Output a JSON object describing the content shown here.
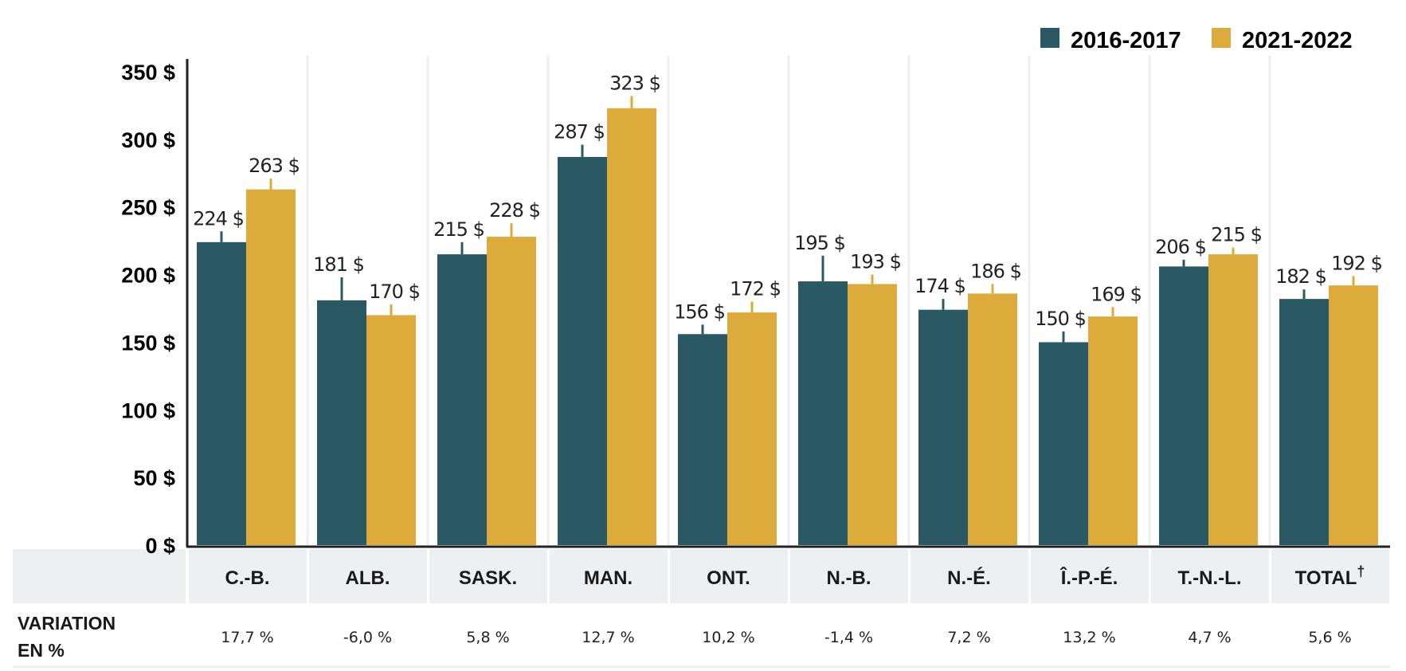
{
  "chart_data": {
    "type": "bar",
    "categories": [
      "C.-B.",
      "ALB.",
      "SASK.",
      "MAN.",
      "ONT.",
      "N.-B.",
      "N.-É.",
      "Î.-P.-É.",
      "T.-N.-L.",
      "TOTAL"
    ],
    "category_superscripts": [
      "",
      "",
      "",
      "",
      "",
      "",
      "",
      "",
      "",
      "†"
    ],
    "series": [
      {
        "name": "2016-2017",
        "color": "#2a5964",
        "values": [
          224,
          181,
          215,
          287,
          156,
          195,
          174,
          150,
          206,
          182
        ],
        "labels": [
          "224 $",
          "181 $",
          "215 $",
          "287 $",
          "156 $",
          "195 $",
          "174 $",
          "150 $",
          "206 $",
          "182 $"
        ],
        "error_upper": [
          232,
          198,
          224,
          296,
          163,
          214,
          182,
          158,
          211,
          189
        ]
      },
      {
        "name": "2021-2022",
        "color": "#ddab3c",
        "values": [
          263,
          170,
          228,
          323,
          172,
          193,
          186,
          169,
          215,
          192
        ],
        "labels": [
          "263 $",
          "170 $",
          "228 $",
          "323 $",
          "172 $",
          "193 $",
          "186 $",
          "169 $",
          "215 $",
          "192 $"
        ],
        "error_upper": [
          271,
          178,
          238,
          332,
          180,
          200,
          193,
          176,
          220,
          199
        ]
      }
    ],
    "yticks": [
      "0 $",
      "50 $",
      "100 $",
      "150 $",
      "200 $",
      "250 $",
      "300 $",
      "350 $"
    ],
    "ytick_values": [
      0,
      50,
      100,
      150,
      200,
      250,
      300,
      350
    ],
    "ylim": [
      0,
      350
    ],
    "legend_position": "top-right",
    "grid": "vertical separators between categories",
    "variation_row": {
      "label_line1": "VARIATION",
      "label_line2": "EN %",
      "values": [
        "17,7 %",
        "-6,0 %",
        "5,8 %",
        "12,7 %",
        "10,2 %",
        "-1,4 %",
        "7,2 %",
        "13,2 %",
        "4,7 %",
        "5,6 %"
      ]
    }
  }
}
